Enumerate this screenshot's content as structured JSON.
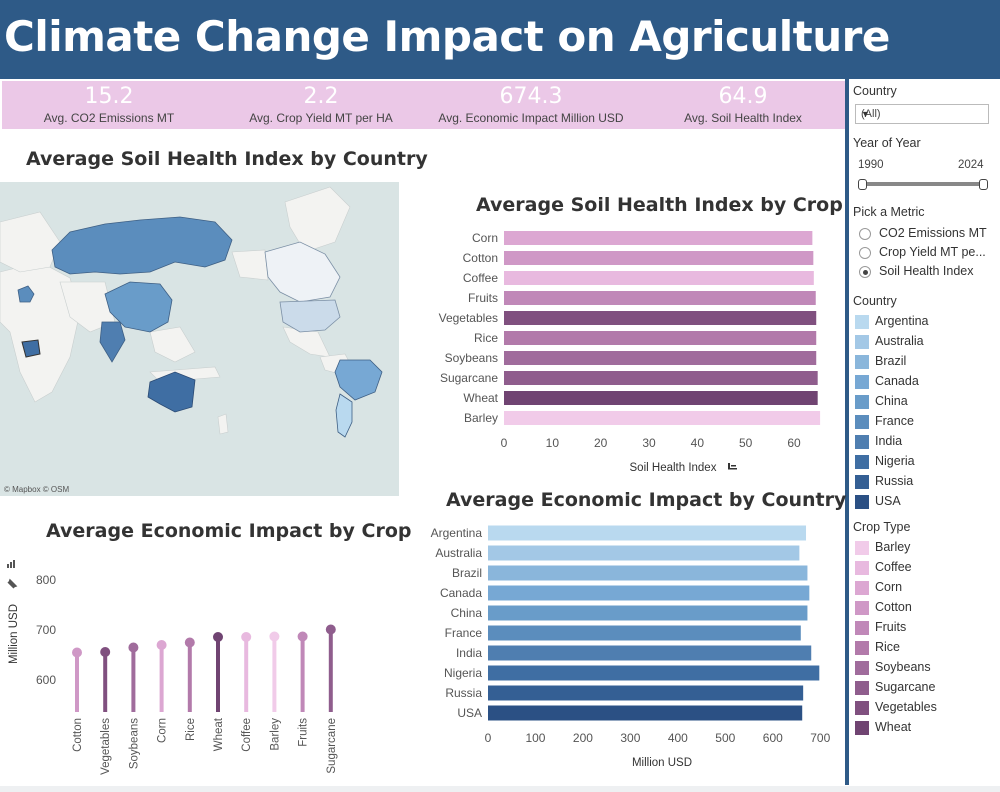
{
  "title": "Climate Change Impact on Agriculture",
  "kpis": [
    {
      "value": "15.2",
      "label": "Avg. CO2 Emissions MT"
    },
    {
      "value": "2.2",
      "label": "Avg. Crop Yield MT per HA"
    },
    {
      "value": "674.3",
      "label": "Avg. Economic Impact Million USD"
    },
    {
      "value": "64.9",
      "label": "Avg. Soil Health Index"
    }
  ],
  "map": {
    "title": "Average Soil Health Index by Country",
    "attribution": "© Mapbox © OSM"
  },
  "filters": {
    "country_title": "Country",
    "country_value": "(All)",
    "year_title": "Year of Year",
    "year_min": "1990",
    "year_max": "2024",
    "metric_title": "Pick a Metric",
    "metrics": [
      {
        "label": "CO2 Emissions MT",
        "selected": false
      },
      {
        "label": "Crop Yield MT pe...",
        "selected": false
      },
      {
        "label": "Soil Health Index",
        "selected": true
      }
    ],
    "country_legend_title": "Country",
    "country_legend": [
      {
        "label": "Argentina",
        "color": "#b9d9ef"
      },
      {
        "label": "Australia",
        "color": "#a3c8e6"
      },
      {
        "label": "Brazil",
        "color": "#8ab6db"
      },
      {
        "label": "Canada",
        "color": "#77a8d4"
      },
      {
        "label": "China",
        "color": "#699cc9"
      },
      {
        "label": "France",
        "color": "#5b8dbd"
      },
      {
        "label": "India",
        "color": "#4f7eb0"
      },
      {
        "label": "Nigeria",
        "color": "#3f6ea3"
      },
      {
        "label": "Russia",
        "color": "#345f94"
      },
      {
        "label": "USA",
        "color": "#2b5084"
      }
    ],
    "crop_legend_title": "Crop Type",
    "crop_legend": [
      {
        "label": "Barley",
        "color": "#f1cbe9"
      },
      {
        "label": "Coffee",
        "color": "#e8b9df"
      },
      {
        "label": "Corn",
        "color": "#dca7d2"
      },
      {
        "label": "Cotton",
        "color": "#cf98c6"
      },
      {
        "label": "Fruits",
        "color": "#c088b8"
      },
      {
        "label": "Rice",
        "color": "#b27aaa"
      },
      {
        "label": "Soybeans",
        "color": "#a06c9c"
      },
      {
        "label": "Sugarcane",
        "color": "#8f5d8d"
      },
      {
        "label": "Vegetables",
        "color": "#80507f"
      },
      {
        "label": "Wheat",
        "color": "#704472"
      }
    ]
  },
  "chart_data": [
    {
      "type": "bar",
      "orientation": "horizontal",
      "title": "Average Soil Health Index by Crop",
      "xlabel": "Soil Health Index",
      "categories": [
        "Corn",
        "Cotton",
        "Coffee",
        "Fruits",
        "Vegetables",
        "Rice",
        "Soybeans",
        "Sugarcane",
        "Wheat",
        "Barley"
      ],
      "values": [
        63.8,
        64.0,
        64.1,
        64.5,
        64.6,
        64.6,
        64.6,
        64.9,
        64.9,
        65.4
      ],
      "colors": [
        "#dca7d2",
        "#cf98c6",
        "#e8b9df",
        "#c088b8",
        "#80507f",
        "#b27aaa",
        "#a06c9c",
        "#8f5d8d",
        "#704472",
        "#f1cbe9"
      ],
      "xticks": [
        0,
        10,
        20,
        30,
        40,
        50,
        60
      ],
      "xlim": [
        0,
        66
      ]
    },
    {
      "type": "bar",
      "orientation": "horizontal",
      "title": "Average Economic Impact by Country",
      "xlabel": "Million USD",
      "categories": [
        "Argentina",
        "Australia",
        "Brazil",
        "Canada",
        "China",
        "France",
        "India",
        "Nigeria",
        "Russia",
        "USA"
      ],
      "values": [
        670,
        656,
        673,
        677,
        673,
        659,
        681,
        698,
        664,
        662
      ],
      "colors": [
        "#b9d9ef",
        "#a3c8e6",
        "#8ab6db",
        "#77a8d4",
        "#699cc9",
        "#5b8dbd",
        "#4f7eb0",
        "#3f6ea3",
        "#345f94",
        "#2b5084"
      ],
      "xticks": [
        0,
        100,
        200,
        300,
        400,
        500,
        600,
        700
      ],
      "xlim": [
        0,
        710
      ]
    },
    {
      "type": "lollipop",
      "title": "Average Economic Impact by Crop",
      "ylabel": "Million USD",
      "categories": [
        "Cotton",
        "Vegetables",
        "Soybeans",
        "Corn",
        "Rice",
        "Wheat",
        "Coffee",
        "Barley",
        "Fruits",
        "Sugarcane"
      ],
      "values": [
        655,
        656,
        665,
        670,
        675,
        686,
        686,
        687,
        687,
        701
      ],
      "colors": [
        "#cf98c6",
        "#80507f",
        "#a06c9c",
        "#dca7d2",
        "#b27aaa",
        "#704472",
        "#e8b9df",
        "#f1cbe9",
        "#c088b8",
        "#8f5d8d"
      ],
      "yticks": [
        600,
        700,
        800
      ],
      "ylim": [
        560,
        840
      ]
    }
  ]
}
